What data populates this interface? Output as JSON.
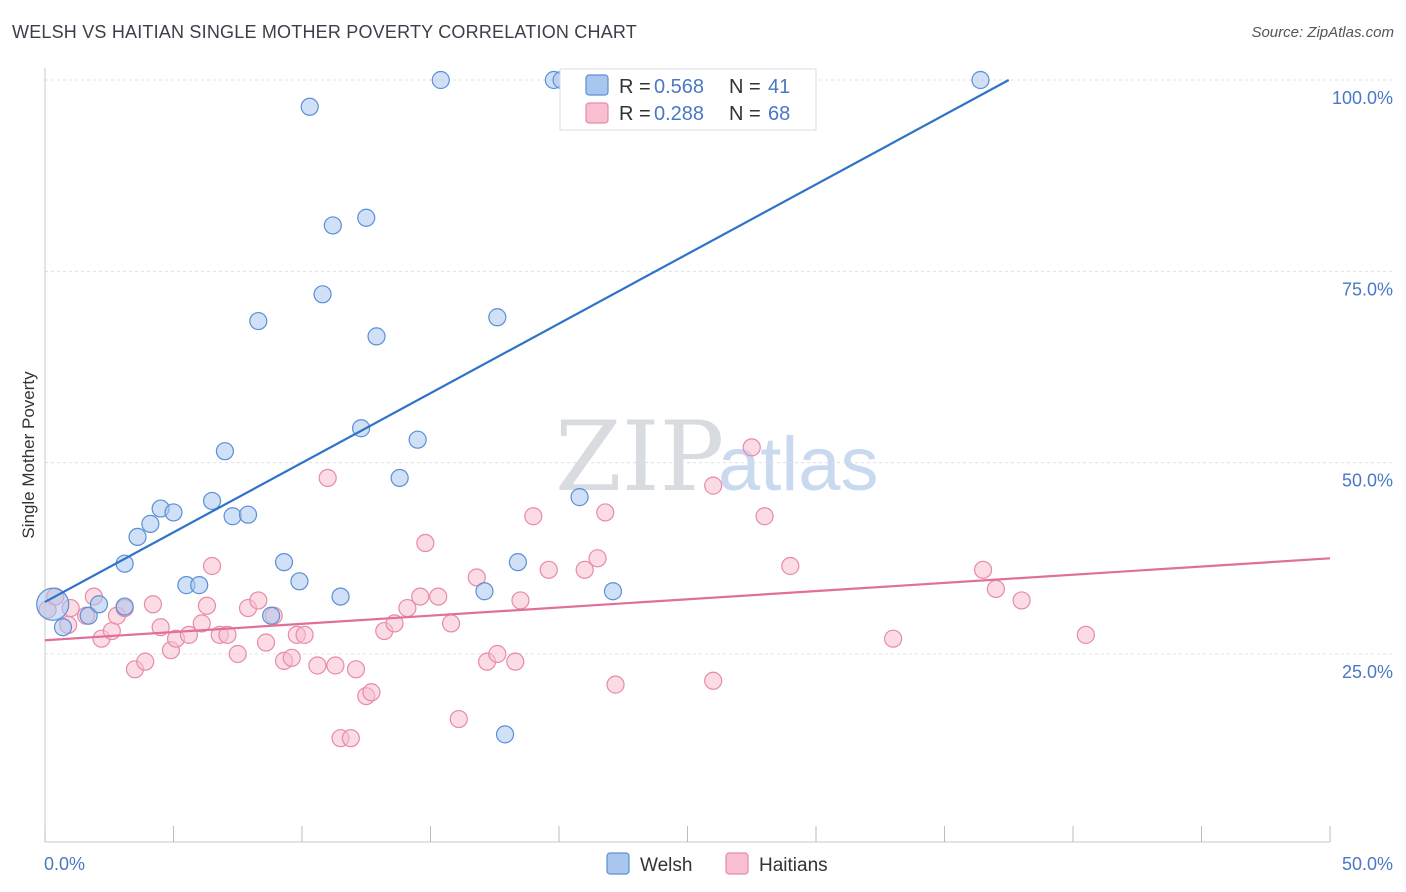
{
  "title": "WELSH VS HAITIAN SINGLE MOTHER POVERTY CORRELATION CHART",
  "source": "Source: ZipAtlas.com",
  "watermark": {
    "zip": "ZIP",
    "atlas": "atlas"
  },
  "colors": {
    "welsh_fill": "#a9c6ee",
    "welsh_stroke": "#5b8fd6",
    "welsh_line": "#2f72c9",
    "haitians_fill": "#f7bfd0",
    "haitians_stroke": "#e88aa8",
    "haitians_line": "#e0709a",
    "grid": "#dde0e6",
    "axis_text": "#4a78c4"
  },
  "legend_top": {
    "rows": [
      {
        "r_label": "R = ",
        "r_value": "0.568",
        "n_label": "N = ",
        "n_value": "41"
      },
      {
        "r_label": "R = ",
        "r_value": "0.288",
        "n_label": "N = ",
        "n_value": "68"
      }
    ]
  },
  "chart_data": {
    "type": "scatter",
    "title": "WELSH VS HAITIAN SINGLE MOTHER POVERTY CORRELATION CHART",
    "xlabel": "",
    "ylabel": "Single Mother Poverty",
    "xlim": [
      0,
      50
    ],
    "ylim": [
      0,
      102
    ],
    "x_tick_labels": [
      "0.0%",
      "50.0%"
    ],
    "y_ticks": [
      25,
      50,
      75,
      100
    ],
    "y_tick_labels": [
      "25.0%",
      "50.0%",
      "75.0%",
      "100.0%"
    ],
    "grid": true,
    "legend_position": "bottom-center",
    "series": [
      {
        "name": "Welsh",
        "R": 0.568,
        "N": 41,
        "trend": {
          "x": [
            0,
            37.5
          ],
          "y": [
            31.8,
            100
          ]
        },
        "points": [
          {
            "x": 0.3,
            "y": 31.5,
            "big": true
          },
          {
            "x": 0.7,
            "y": 28.5
          },
          {
            "x": 1.7,
            "y": 30
          },
          {
            "x": 2.1,
            "y": 31.5
          },
          {
            "x": 3.1,
            "y": 31.2
          },
          {
            "x": 3.1,
            "y": 36.8
          },
          {
            "x": 3.6,
            "y": 40.3
          },
          {
            "x": 4.1,
            "y": 42
          },
          {
            "x": 4.5,
            "y": 44
          },
          {
            "x": 5,
            "y": 43.5
          },
          {
            "x": 5.5,
            "y": 34
          },
          {
            "x": 6,
            "y": 34
          },
          {
            "x": 6.5,
            "y": 45
          },
          {
            "x": 7,
            "y": 51.5
          },
          {
            "x": 7.3,
            "y": 43
          },
          {
            "x": 7.9,
            "y": 43.2
          },
          {
            "x": 8.3,
            "y": 68.5
          },
          {
            "x": 8.8,
            "y": 30
          },
          {
            "x": 9.3,
            "y": 37
          },
          {
            "x": 9.9,
            "y": 34.5
          },
          {
            "x": 10.3,
            "y": 96.5
          },
          {
            "x": 10.8,
            "y": 72
          },
          {
            "x": 11.2,
            "y": 81
          },
          {
            "x": 11.5,
            "y": 32.5
          },
          {
            "x": 12.3,
            "y": 54.5
          },
          {
            "x": 12.5,
            "y": 82
          },
          {
            "x": 12.9,
            "y": 66.5
          },
          {
            "x": 13.8,
            "y": 48
          },
          {
            "x": 14.5,
            "y": 53
          },
          {
            "x": 15.4,
            "y": 100
          },
          {
            "x": 17.1,
            "y": 33.2
          },
          {
            "x": 17.6,
            "y": 69
          },
          {
            "x": 17.9,
            "y": 14.5
          },
          {
            "x": 18.4,
            "y": 37
          },
          {
            "x": 19.8,
            "y": 100
          },
          {
            "x": 20.1,
            "y": 100
          },
          {
            "x": 20.8,
            "y": 45.5
          },
          {
            "x": 21,
            "y": 100
          },
          {
            "x": 22.1,
            "y": 33.2
          },
          {
            "x": 24.5,
            "y": 100
          },
          {
            "x": 36.4,
            "y": 100
          }
        ]
      },
      {
        "name": "Haitians",
        "R": 0.288,
        "N": 68,
        "trend": {
          "x": [
            0,
            50
          ],
          "y": [
            26.8,
            37.5
          ]
        },
        "points": [
          {
            "x": 0.1,
            "y": 30.8
          },
          {
            "x": 0.4,
            "y": 32.5
          },
          {
            "x": 0.9,
            "y": 28.8
          },
          {
            "x": 1,
            "y": 31
          },
          {
            "x": 1.6,
            "y": 30
          },
          {
            "x": 1.9,
            "y": 32.5
          },
          {
            "x": 2.2,
            "y": 27
          },
          {
            "x": 2.6,
            "y": 28
          },
          {
            "x": 2.8,
            "y": 30
          },
          {
            "x": 3.1,
            "y": 31
          },
          {
            "x": 3.5,
            "y": 23
          },
          {
            "x": 3.9,
            "y": 24
          },
          {
            "x": 4.2,
            "y": 31.5
          },
          {
            "x": 4.5,
            "y": 28.5
          },
          {
            "x": 4.9,
            "y": 25.5
          },
          {
            "x": 5.1,
            "y": 27
          },
          {
            "x": 5.6,
            "y": 27.5
          },
          {
            "x": 6.1,
            "y": 29
          },
          {
            "x": 6.3,
            "y": 31.3
          },
          {
            "x": 6.5,
            "y": 36.5
          },
          {
            "x": 6.8,
            "y": 27.5
          },
          {
            "x": 7.1,
            "y": 27.5
          },
          {
            "x": 7.5,
            "y": 25
          },
          {
            "x": 7.9,
            "y": 31
          },
          {
            "x": 8.3,
            "y": 32
          },
          {
            "x": 8.6,
            "y": 26.5
          },
          {
            "x": 8.9,
            "y": 30
          },
          {
            "x": 9.3,
            "y": 24.1
          },
          {
            "x": 9.6,
            "y": 24.5
          },
          {
            "x": 9.8,
            "y": 27.5
          },
          {
            "x": 10.1,
            "y": 27.5
          },
          {
            "x": 10.6,
            "y": 23.5
          },
          {
            "x": 11,
            "y": 48
          },
          {
            "x": 11.3,
            "y": 23.5
          },
          {
            "x": 11.5,
            "y": 14
          },
          {
            "x": 11.9,
            "y": 14
          },
          {
            "x": 12.1,
            "y": 23
          },
          {
            "x": 12.5,
            "y": 19.5
          },
          {
            "x": 12.7,
            "y": 20
          },
          {
            "x": 13.2,
            "y": 28
          },
          {
            "x": 13.6,
            "y": 29
          },
          {
            "x": 14.1,
            "y": 31
          },
          {
            "x": 14.6,
            "y": 32.5
          },
          {
            "x": 14.8,
            "y": 39.5
          },
          {
            "x": 15.3,
            "y": 32.5
          },
          {
            "x": 15.8,
            "y": 29
          },
          {
            "x": 16.1,
            "y": 16.5
          },
          {
            "x": 16.8,
            "y": 35
          },
          {
            "x": 17.2,
            "y": 24
          },
          {
            "x": 17.6,
            "y": 25
          },
          {
            "x": 18.3,
            "y": 24
          },
          {
            "x": 18.5,
            "y": 32
          },
          {
            "x": 19,
            "y": 43
          },
          {
            "x": 19.6,
            "y": 36
          },
          {
            "x": 21,
            "y": 36
          },
          {
            "x": 21.5,
            "y": 37.5
          },
          {
            "x": 21.8,
            "y": 43.5
          },
          {
            "x": 22.2,
            "y": 21
          },
          {
            "x": 26,
            "y": 47
          },
          {
            "x": 26,
            "y": 21.5
          },
          {
            "x": 27.5,
            "y": 52
          },
          {
            "x": 28,
            "y": 43
          },
          {
            "x": 29,
            "y": 36.5
          },
          {
            "x": 33,
            "y": 27
          },
          {
            "x": 36.5,
            "y": 36
          },
          {
            "x": 37,
            "y": 33.5
          },
          {
            "x": 38,
            "y": 32
          },
          {
            "x": 40.5,
            "y": 27.5
          }
        ]
      }
    ]
  }
}
